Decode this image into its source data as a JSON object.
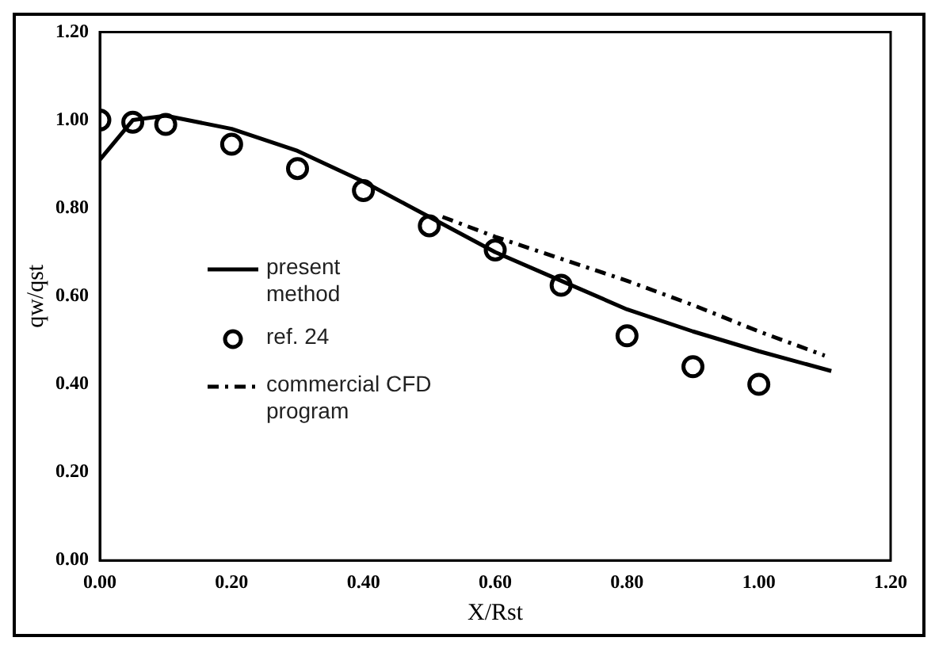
{
  "chart_data": {
    "type": "line",
    "xlabel": "X/Rst",
    "ylabel": "qw/qst",
    "xlim": [
      0,
      1.2
    ],
    "ylim": [
      0,
      1.2
    ],
    "xticks": [
      {
        "value": 0,
        "label": "0.00"
      },
      {
        "value": 0.2,
        "label": "0.20"
      },
      {
        "value": 0.4,
        "label": "0.40"
      },
      {
        "value": 0.6,
        "label": "0.60"
      },
      {
        "value": 0.8,
        "label": "0.80"
      },
      {
        "value": 1,
        "label": "1.00"
      },
      {
        "value": 1.2,
        "label": "1.20"
      }
    ],
    "yticks": [
      {
        "value": 0,
        "label": "0.00"
      },
      {
        "value": 0.2,
        "label": "0.20"
      },
      {
        "value": 0.4,
        "label": "0.40"
      },
      {
        "value": 0.6,
        "label": "0.60"
      },
      {
        "value": 0.8,
        "label": "0.80"
      },
      {
        "value": 1,
        "label": "1.00"
      },
      {
        "value": 1.2,
        "label": "1.20"
      }
    ],
    "grid": false,
    "legend": "center left",
    "series": [
      {
        "name": "present method",
        "color": "#000000",
        "line_style": "solid",
        "marker": "none",
        "x": [
          0,
          0.05,
          0.1,
          0.2,
          0.3,
          0.4,
          0.5,
          0.6,
          0.7,
          0.8,
          0.9,
          1.0,
          1.11
        ],
        "values": [
          0.91,
          1.0,
          1.01,
          0.98,
          0.93,
          0.86,
          0.78,
          0.7,
          0.635,
          0.57,
          0.52,
          0.475,
          0.43
        ]
      },
      {
        "name": "ref. 24",
        "type": "scatter",
        "color": "#000000",
        "marker": "circle",
        "x": [
          0,
          0.05,
          0.1,
          0.2,
          0.3,
          0.4,
          0.5,
          0.6,
          0.7,
          0.8,
          0.9,
          1.0
        ],
        "values": [
          1.0,
          0.995,
          0.99,
          0.945,
          0.89,
          0.84,
          0.76,
          0.705,
          0.625,
          0.51,
          0.44,
          0.4
        ]
      },
      {
        "name": "commercial CFD program",
        "color": "#000000",
        "line_style": "dashdot",
        "marker": "none",
        "x": [
          0.52,
          0.6,
          0.7,
          0.8,
          0.9,
          1.0,
          1.1
        ],
        "values": [
          0.78,
          0.735,
          0.685,
          0.635,
          0.58,
          0.52,
          0.465
        ]
      }
    ]
  }
}
